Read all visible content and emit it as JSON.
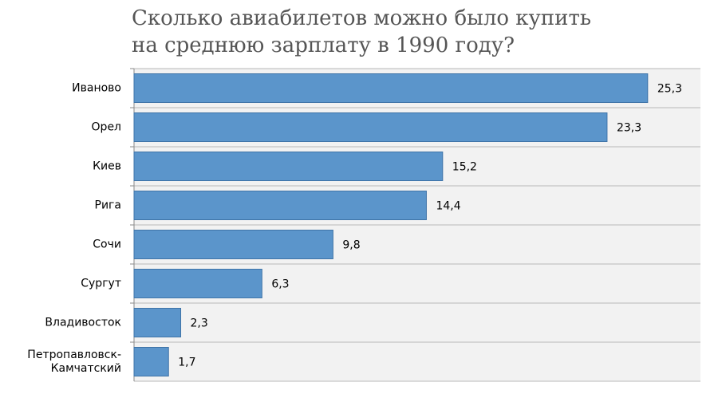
{
  "chart_data": {
    "type": "bar",
    "orientation": "horizontal",
    "title": "Сколько авиабилетов можно было купить\nна среднюю зарплату в 1990 году?",
    "categories": [
      "Иваново",
      "Орел",
      "Киев",
      "Рига",
      "Сочи",
      "Сургут",
      "Владивосток",
      "Петропавловск-\nКамчатский"
    ],
    "values": [
      25.3,
      23.3,
      15.2,
      14.4,
      9.8,
      6.3,
      2.3,
      1.7
    ],
    "value_labels": [
      "25,3",
      "23,3",
      "15,2",
      "14,4",
      "9,8",
      "6,3",
      "2,3",
      "1,7"
    ],
    "color": "#5b95cb",
    "xlim": [
      0,
      27.9
    ],
    "grid": true
  }
}
